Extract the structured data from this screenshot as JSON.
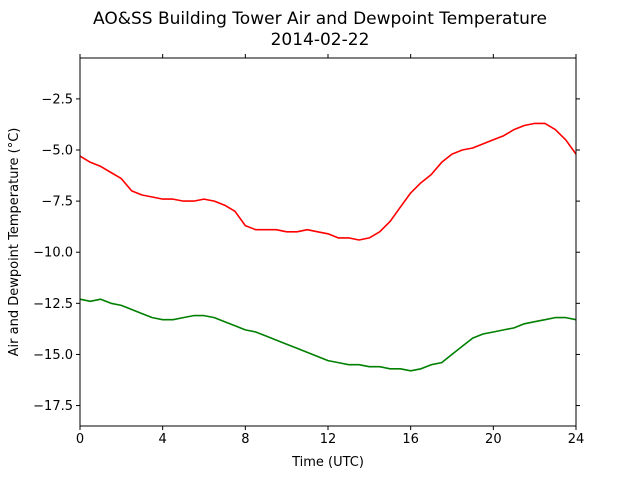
{
  "chart_data": {
    "type": "line",
    "title": "AO&SS Building Tower Air and Dewpoint Temperature",
    "subtitle": "2014-02-22",
    "xlabel": "Time (UTC)",
    "ylabel": "Air and Dewpoint Temperature (°C)",
    "xlim": [
      0,
      24
    ],
    "ylim": [
      -18.5,
      -0.5
    ],
    "xticks": [
      0,
      4,
      8,
      12,
      16,
      20,
      24
    ],
    "xtick_labels": [
      "0",
      "4",
      "8",
      "12",
      "16",
      "20",
      "24"
    ],
    "yticks": [
      -2.5,
      -5.0,
      -7.5,
      -10.0,
      -12.5,
      -15.0,
      -17.5
    ],
    "ytick_labels": [
      "−2.5",
      "−5.0",
      "−7.5",
      "−10.0",
      "−12.5",
      "−15.0",
      "−17.5"
    ],
    "grid": false,
    "series": [
      {
        "color": "#ff0000",
        "x": [
          0,
          0.5,
          1,
          1.5,
          2,
          2.5,
          3,
          3.5,
          4,
          4.5,
          5,
          5.5,
          6,
          6.5,
          7,
          7.5,
          8,
          8.5,
          9,
          9.5,
          10,
          10.5,
          11,
          11.5,
          12,
          12.5,
          13,
          13.5,
          14,
          14.5,
          15,
          15.5,
          16,
          16.5,
          17,
          17.5,
          18,
          18.5,
          19,
          19.5,
          20,
          20.5,
          21,
          21.5,
          22,
          22.5,
          23,
          23.5,
          24
        ],
        "values": [
          -5.3,
          -5.6,
          -5.8,
          -6.1,
          -6.4,
          -7.0,
          -7.2,
          -7.3,
          -7.4,
          -7.4,
          -7.5,
          -7.5,
          -7.4,
          -7.5,
          -7.7,
          -8.0,
          -8.7,
          -8.9,
          -8.9,
          -8.9,
          -9.0,
          -9.0,
          -8.9,
          -9.0,
          -9.1,
          -9.3,
          -9.3,
          -9.4,
          -9.3,
          -9.0,
          -8.5,
          -7.8,
          -7.1,
          -6.6,
          -6.2,
          -5.6,
          -5.2,
          -5.0,
          -4.9,
          -4.7,
          -4.5,
          -4.3,
          -4.0,
          -3.8,
          -3.7,
          -3.7,
          -4.0,
          -4.5,
          -5.2
        ]
      },
      {
        "color": "#008000",
        "x": [
          0,
          0.5,
          1,
          1.5,
          2,
          2.5,
          3,
          3.5,
          4,
          4.5,
          5,
          5.5,
          6,
          6.5,
          7,
          7.5,
          8,
          8.5,
          9,
          9.5,
          10,
          10.5,
          11,
          11.5,
          12,
          12.5,
          13,
          13.5,
          14,
          14.5,
          15,
          15.5,
          16,
          16.5,
          17,
          17.5,
          18,
          18.5,
          19,
          19.5,
          20,
          20.5,
          21,
          21.5,
          22,
          22.5,
          23,
          23.5,
          24
        ],
        "values": [
          -12.3,
          -12.4,
          -12.3,
          -12.5,
          -12.6,
          -12.8,
          -13.0,
          -13.2,
          -13.3,
          -13.3,
          -13.2,
          -13.1,
          -13.1,
          -13.2,
          -13.4,
          -13.6,
          -13.8,
          -13.9,
          -14.1,
          -14.3,
          -14.5,
          -14.7,
          -14.9,
          -15.1,
          -15.3,
          -15.4,
          -15.5,
          -15.5,
          -15.6,
          -15.6,
          -15.7,
          -15.7,
          -15.8,
          -15.7,
          -15.5,
          -15.4,
          -15.0,
          -14.6,
          -14.2,
          -14.0,
          -13.9,
          -13.8,
          -13.7,
          -13.5,
          -13.4,
          -13.3,
          -13.2,
          -13.2,
          -13.3
        ]
      }
    ]
  }
}
